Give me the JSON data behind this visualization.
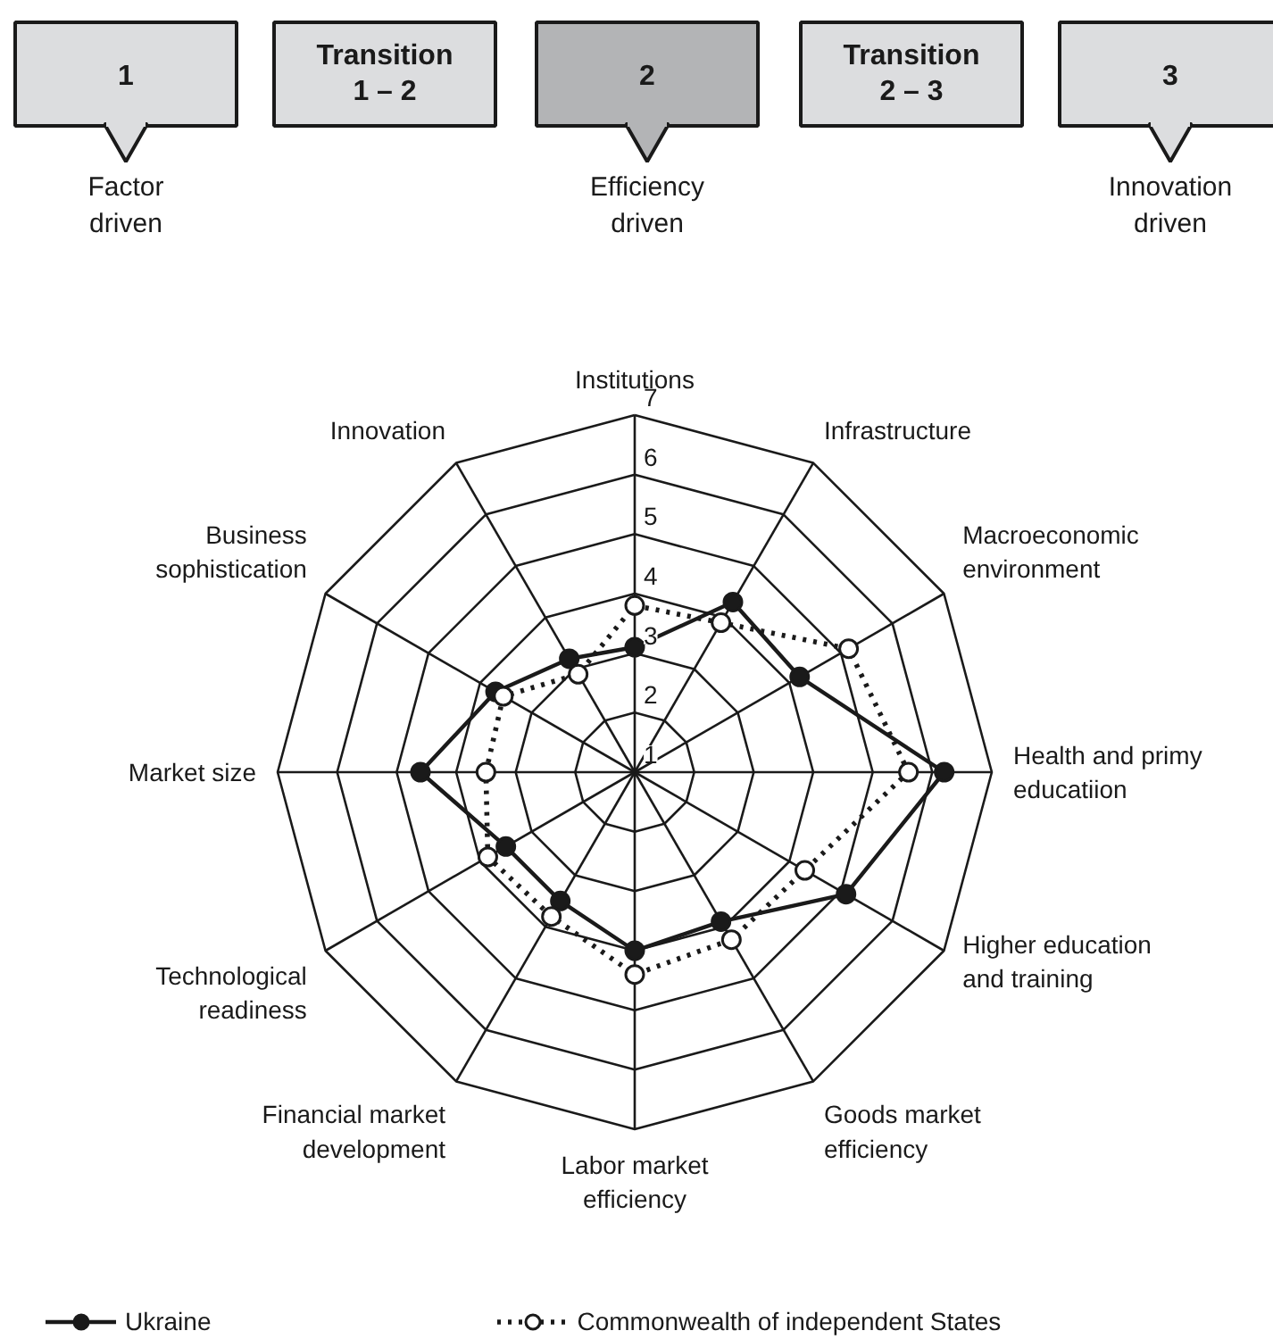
{
  "chart_data": {
    "type": "radar",
    "categories": [
      "Institutions",
      "Infrastructure",
      "Macroeconomic\nenvironment",
      "Health and primy\neducatiion",
      "Higher education\nand training",
      "Goods market\nefficiency",
      "Labor market\nefficiency",
      "Financial market\ndevelopment",
      "Technological\nreadiness",
      "Market size",
      "Business\nsophistication",
      "Innovation"
    ],
    "series": [
      {
        "name": "Ukraine",
        "color": "#1a1a1a",
        "line_style": "solid",
        "values": [
          3.1,
          4.3,
          4.2,
          6.2,
          5.1,
          3.9,
          4.0,
          3.5,
          3.5,
          4.6,
          3.7,
          3.2
        ]
      },
      {
        "name": "Commonwealth of independent States",
        "color": "#1a1a1a",
        "line_style": "dotted",
        "values": [
          3.8,
          3.9,
          5.15,
          5.6,
          4.3,
          4.25,
          4.4,
          3.8,
          3.85,
          3.5,
          3.55,
          2.9
        ]
      }
    ],
    "ylim": [
      1,
      7
    ],
    "yticks": [
      1,
      2,
      3,
      4,
      5,
      6,
      7
    ],
    "grid": true,
    "marker": "circle",
    "legend": "bottom",
    "annotations": [
      "1",
      "Transition\n1 – 2",
      "2",
      "Transition\n2 – 3",
      "3",
      "Factor\ndriven",
      "Efficiency\ndriven",
      "Innovation\ndriven"
    ]
  }
}
